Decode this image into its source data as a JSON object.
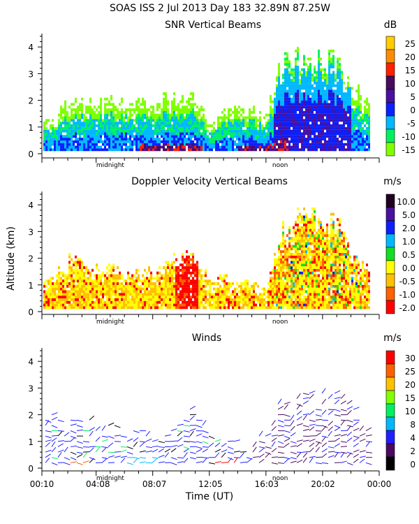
{
  "header": {
    "title": "SOAS ISS    2 Jul 2013 Day 183 32.89N  87.25W"
  },
  "x_axis": {
    "label": "Time (UT)",
    "tick_labels": [
      "00:10",
      "04:08",
      "08:07",
      "12:05",
      "16:03",
      "20:02",
      "00:00"
    ],
    "tick_hours": [
      0.17,
      4.13,
      8.12,
      12.08,
      16.05,
      20.03,
      24.0
    ],
    "range_hours": [
      0.17,
      24.0
    ],
    "markers": [
      {
        "label": "midnight",
        "hour": 5.0
      },
      {
        "label": "noon",
        "hour": 17.0
      }
    ]
  },
  "y_axis": {
    "label": "Altitude (km)",
    "tick_labels": [
      "0",
      "1",
      "2",
      "3",
      "4"
    ],
    "range_km": [
      0,
      4.5
    ]
  },
  "chart_data": [
    {
      "type": "heatmap",
      "title": "SNR Vertical Beams",
      "colorbar": {
        "unit": "dB",
        "labels": [
          "25",
          "20",
          "15",
          "10",
          "5",
          "0",
          "-5",
          "-10",
          "-15"
        ],
        "colors": [
          "#ffcc00",
          "#ff8c00",
          "#ff2000",
          "#4a0a60",
          "#4a10a0",
          "#0a20ff",
          "#00b8ff",
          "#00f060",
          "#80ff00"
        ]
      },
      "echo_top_km_by_hour": [
        1.2,
        1.3,
        1.8,
        1.9,
        1.8,
        1.9,
        1.8,
        1.9,
        1.9,
        2.0,
        2.1,
        2.0,
        1.0,
        1.5,
        1.6,
        1.6,
        1.4,
        3.2,
        3.5,
        3.6,
        3.6,
        3.4,
        2.5,
        2.0,
        1.8
      ]
    },
    {
      "type": "heatmap",
      "title": "Doppler Velocity Vertical Beams",
      "colorbar": {
        "unit": "m/s",
        "labels": [
          "10.0",
          "5.0",
          "2.0",
          "1.0",
          "0.5",
          "0.0",
          "-0.5",
          "-1.0",
          "-2.0"
        ],
        "colors": [
          "#200020",
          "#4a10a0",
          "#0a20ff",
          "#00b8ff",
          "#10e020",
          "#ffff00",
          "#ffc000",
          "#ff6000",
          "#ff0000"
        ]
      },
      "echo_top_km_by_hour": [
        1.1,
        1.3,
        1.9,
        1.8,
        1.6,
        1.7,
        1.3,
        1.4,
        1.5,
        1.8,
        2.1,
        2.0,
        1.1,
        1.3,
        1.2,
        1.0,
        0.8,
        3.0,
        3.5,
        3.5,
        3.4,
        3.2,
        2.0,
        1.6,
        1.4
      ]
    },
    {
      "type": "vector",
      "title": "Winds",
      "colorbar": {
        "unit": "m/s",
        "labels": [
          "30",
          "25",
          "20",
          "15",
          "10",
          "8",
          "4",
          "2",
          "0"
        ],
        "colors": [
          "#ff0000",
          "#ff6000",
          "#ffc000",
          "#80ff00",
          "#00f060",
          "#00b8ff",
          "#2020ff",
          "#4a0a60",
          "#000000"
        ]
      },
      "echo_top_km_by_hour": [
        1.6,
        2.0,
        1.7,
        1.7,
        1.6,
        1.7,
        1.5,
        1.3,
        1.2,
        1.6,
        2.0,
        2.1,
        1.3,
        1.0,
        1.0,
        1.2,
        1.5,
        2.3,
        2.6,
        2.8,
        2.8,
        2.6,
        2.2,
        1.6,
        1.4
      ]
    }
  ]
}
